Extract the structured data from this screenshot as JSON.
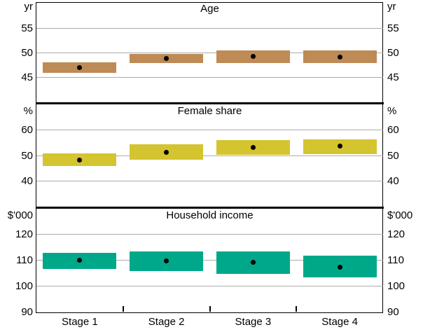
{
  "chart_data": {
    "type": "bar",
    "subtype": "floating-range-bars-with-median-dots",
    "grid": true,
    "legend": "none",
    "categories": [
      "Stage 1",
      "Stage 2",
      "Stage 3",
      "Stage 4"
    ],
    "gridline_color": "#ABABAB",
    "frame_color": "#000000",
    "dot_color": "#000000",
    "panels": [
      {
        "title": "Age",
        "unit": "yr",
        "ylim": [
          40,
          60
        ],
        "yticks": [
          45,
          50,
          55
        ],
        "bar_color": "#BE8A55",
        "series": [
          {
            "name": "range_low",
            "values": [
              46.0,
              47.9,
              48.0,
              47.9
            ]
          },
          {
            "name": "range_high",
            "values": [
              48.1,
              49.8,
              50.5,
              50.5
            ]
          },
          {
            "name": "median_dot",
            "values": [
              47.0,
              48.8,
              49.3,
              49.1
            ]
          }
        ]
      },
      {
        "title": "Female share",
        "unit": "%",
        "ylim": [
          30,
          70
        ],
        "yticks": [
          40,
          50,
          60
        ],
        "bar_color": "#D4C42F",
        "series": [
          {
            "name": "range_low",
            "values": [
              45.8,
              48.3,
              50.2,
              50.5
            ]
          },
          {
            "name": "range_high",
            "values": [
              50.7,
              54.3,
              56.1,
              56.4
            ]
          },
          {
            "name": "median_dot",
            "values": [
              48.2,
              51.3,
              53.1,
              53.6
            ]
          }
        ]
      },
      {
        "title": "Household income",
        "unit": "$'000",
        "ylim": [
          90,
          130
        ],
        "yticks": [
          90,
          100,
          110,
          120
        ],
        "bar_color": "#00A88A",
        "series": [
          {
            "name": "range_low",
            "values": [
              106.6,
              105.9,
              104.8,
              103.2
            ]
          },
          {
            "name": "range_high",
            "values": [
              112.8,
              113.5,
              113.4,
              111.8
            ]
          },
          {
            "name": "median_dot",
            "values": [
              110.0,
              109.8,
              109.1,
              107.4
            ]
          }
        ]
      }
    ]
  }
}
